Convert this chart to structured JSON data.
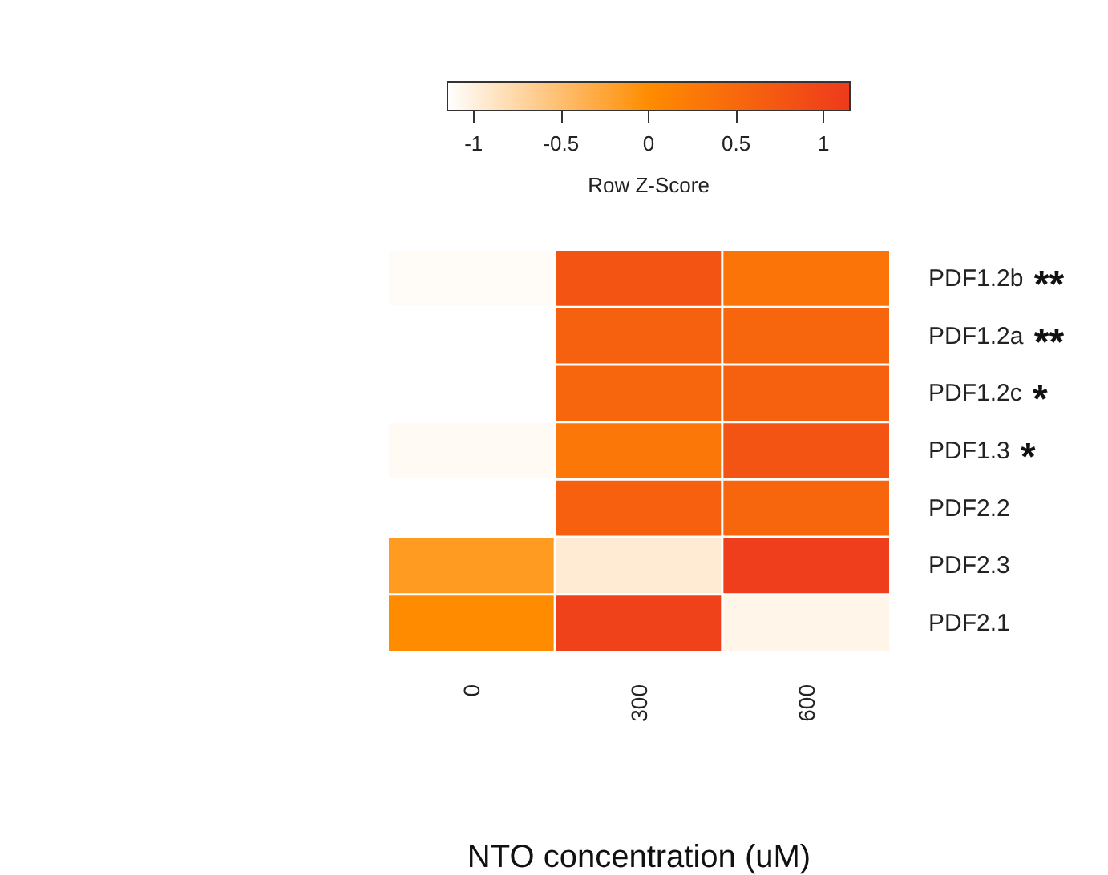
{
  "chart_data": {
    "type": "heatmap",
    "xlabel": "NTO concentration (uM)",
    "clabel": "Row Z-Score",
    "categories": [
      "0",
      "300",
      "600"
    ],
    "y_categories": [
      "PDF1.2b **",
      "PDF1.2a **",
      "PDF1.2c *",
      "PDF1.3 *",
      "PDF2.2",
      "PDF2.3",
      "PDF2.1"
    ],
    "cells": [
      [
        -1.12,
        0.78,
        0.34
      ],
      [
        -1.15,
        0.6,
        0.55
      ],
      [
        -1.15,
        0.55,
        0.6
      ],
      [
        -1.1,
        0.3,
        0.8
      ],
      [
        -1.15,
        0.62,
        0.53
      ],
      [
        -0.15,
        -0.95,
        1.1
      ],
      [
        0,
        1.05,
        -1.05
      ]
    ],
    "clim": [
      -1.15,
      1.15
    ],
    "cticks": [
      -1,
      -0.5,
      0,
      0.5,
      1
    ],
    "colors": [
      "#ffffff",
      "#ff8c00",
      "#ee3a1c"
    ]
  }
}
